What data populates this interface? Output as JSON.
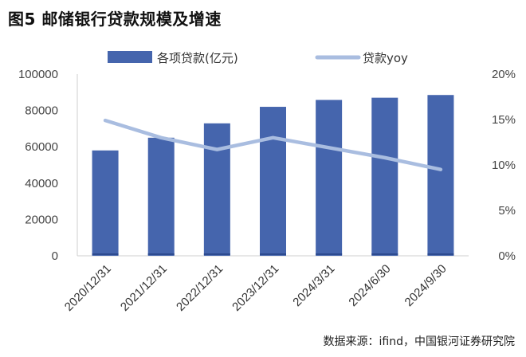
{
  "figure_title": "图5  邮储银行贷款规模及增速",
  "source_note": "数据来源：ifind，中国银河证券研究院",
  "colors": {
    "bar": "#4565ad",
    "bar_base": "#2c4a8f",
    "line": "#a9bde0",
    "axis": "#cfcfcf"
  },
  "chart_data": {
    "type": "bar",
    "title": "",
    "categories": [
      "2020/12/31",
      "2021/12/31",
      "2022/12/31",
      "2023/12/31",
      "2024/3/31",
      "2024/6/30",
      "2024/9/30"
    ],
    "series": [
      {
        "name": "各项贷款(亿元)",
        "type": "bar",
        "axis": "left",
        "values": [
          58000,
          65000,
          72900,
          82000,
          85800,
          87000,
          88500
        ]
      },
      {
        "name": "贷款yoy",
        "type": "line",
        "axis": "right",
        "values": [
          0.149,
          0.13,
          0.117,
          0.13,
          0.119,
          0.108,
          0.095
        ]
      }
    ],
    "y_left": {
      "min": 0,
      "max": 100000,
      "ticks": [
        "0",
        "20000",
        "40000",
        "60000",
        "80000",
        "100000"
      ]
    },
    "y_right": {
      "min": 0,
      "max": 0.2,
      "ticks": [
        "0%",
        "5%",
        "10%",
        "15%",
        "20%"
      ]
    },
    "grid": false,
    "legend_position": "top"
  }
}
